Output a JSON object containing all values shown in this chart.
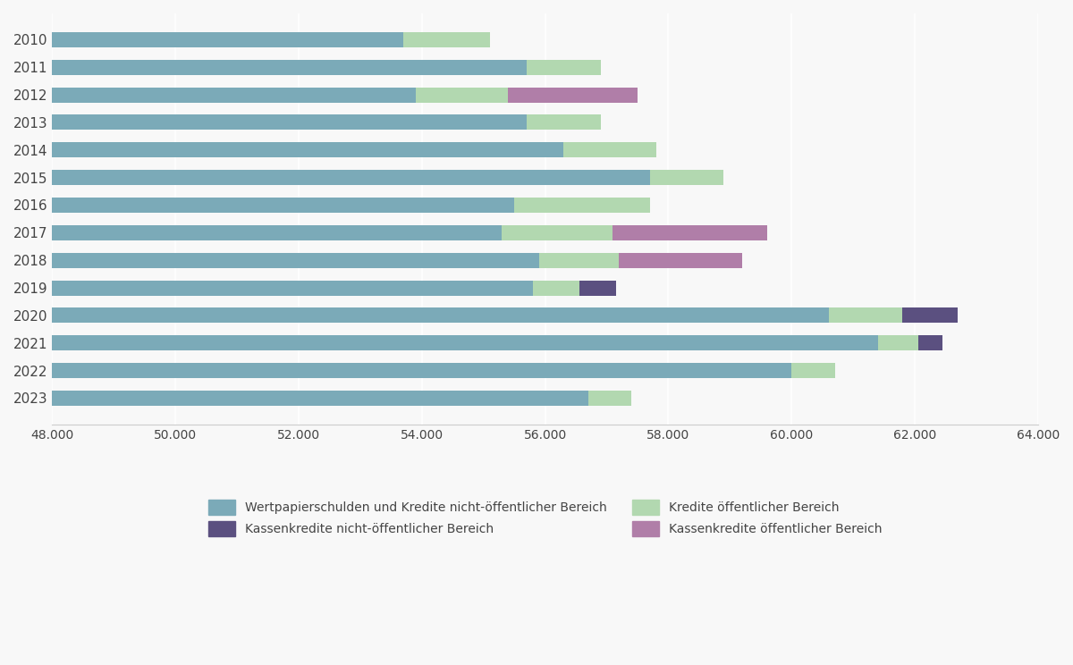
{
  "years": [
    "2010",
    "2011",
    "2012",
    "2013",
    "2014",
    "2015",
    "2016",
    "2017",
    "2018",
    "2019",
    "2020",
    "2021",
    "2022",
    "2023"
  ],
  "wertpapier": [
    53700,
    55700,
    53900,
    55700,
    56300,
    57700,
    55500,
    55300,
    55900,
    55800,
    60600,
    61400,
    60000,
    56700
  ],
  "kredite_oeffentlich": [
    1400,
    1200,
    1500,
    1200,
    1500,
    1200,
    2200,
    1800,
    1300,
    750,
    1200,
    650,
    700,
    700
  ],
  "kassen_nicht_oeffentlich": [
    0,
    0,
    0,
    0,
    0,
    0,
    0,
    0,
    0,
    600,
    900,
    400,
    0,
    0
  ],
  "kassen_oeffentlich": [
    0,
    0,
    2100,
    0,
    0,
    0,
    0,
    2500,
    2000,
    0,
    0,
    0,
    0,
    0
  ],
  "color_wertpapier": "#7BAAB8",
  "color_kredite_oeffentlich": "#B2D8B0",
  "color_kassen_nicht_oeffentlich": "#5B5080",
  "color_kassen_oeffentlich": "#B07EA8",
  "xlim_min": 48000,
  "xlim_max": 64000,
  "xticks": [
    48000,
    50000,
    52000,
    54000,
    56000,
    58000,
    60000,
    62000,
    64000
  ],
  "xtick_labels": [
    "48.000",
    "50.000",
    "52.000",
    "54.000",
    "56.000",
    "58.000",
    "60.000",
    "62.000",
    "64.000"
  ],
  "legend_labels": [
    "Wertpapierschulden und Kredite nicht-öffentlicher Bereich",
    "Kredite öffentlicher Bereich",
    "Kassenkredite nicht-öffentlicher Bereich",
    "Kassenkredite öffentlicher Bereich"
  ],
  "background_color": "#F8F8F8",
  "bar_height": 0.55
}
